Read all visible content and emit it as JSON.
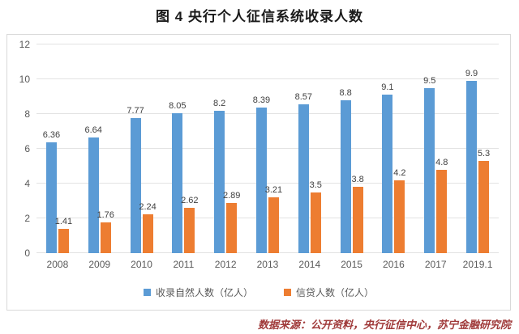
{
  "title": "图 4 央行个人征信系统收录人数",
  "source": "数据来源：公开资料，央行征信中心，苏宁金融研究院",
  "colors": {
    "series_blue": "#5B9BD5",
    "series_orange": "#ED7D31",
    "gridline": "#e3e3e3",
    "axis_text": "#595959",
    "source_text": "#a03a3a"
  },
  "chart_data": {
    "type": "bar",
    "title": "图 4 央行个人征信系统收录人数",
    "categories": [
      "2008",
      "2009",
      "2010",
      "2011",
      "2012",
      "2013",
      "2014",
      "2015",
      "2016",
      "2017",
      "2019.1"
    ],
    "series": [
      {
        "name": "收录自然人数（亿人）",
        "color": "#5B9BD5",
        "values": [
          6.36,
          6.64,
          7.77,
          8.05,
          8.2,
          8.39,
          8.57,
          8.8,
          9.1,
          9.5,
          9.9
        ]
      },
      {
        "name": "信贷人数（亿人）",
        "color": "#ED7D31",
        "values": [
          1.41,
          1.76,
          2.24,
          2.62,
          2.89,
          3.21,
          3.5,
          3.8,
          4.2,
          4.8,
          5.3
        ]
      }
    ],
    "xlabel": "",
    "ylabel": "",
    "ylim": [
      0,
      12
    ],
    "yticks": [
      0,
      2,
      4,
      6,
      8,
      10,
      12
    ],
    "grid": true,
    "legend_position": "bottom",
    "data_labels": true
  }
}
